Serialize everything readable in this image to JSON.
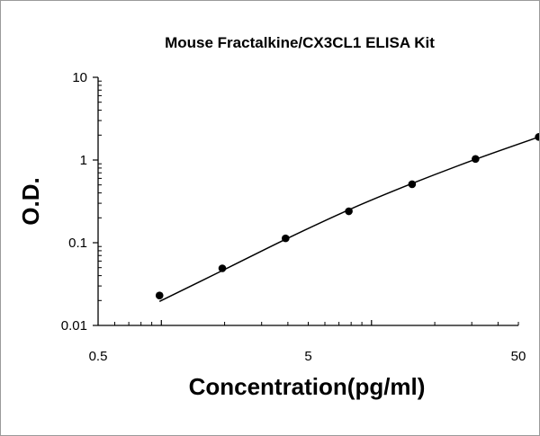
{
  "chart_data": {
    "type": "scatter",
    "title": "Mouse Fractalkine/CX3CL1 ELISA Kit",
    "xlabel": "Concentration(pg/ml)",
    "ylabel": "O.D.",
    "x_scale": "log",
    "y_scale": "log",
    "xlim": [
      0.5,
      50
    ],
    "ylim": [
      0.01,
      10
    ],
    "x_ticks": [
      "0.5",
      "5",
      "50"
    ],
    "y_ticks": [
      "0.01",
      "0.1",
      "1",
      "10"
    ],
    "grid": false,
    "legend": "none",
    "series": [
      {
        "points": [
          {
            "x": 0.98,
            "y": 0.023
          },
          {
            "x": 1.95,
            "y": 0.049
          },
          {
            "x": 3.9,
            "y": 0.113
          },
          {
            "x": 7.8,
            "y": 0.24
          },
          {
            "x": 15.6,
            "y": 0.51
          },
          {
            "x": 31.25,
            "y": 1.03
          },
          {
            "x": 62.5,
            "y": 1.9
          }
        ],
        "fit": [
          {
            "x": 0.98,
            "y": 0.0195
          },
          {
            "x": 1.95,
            "y": 0.046
          },
          {
            "x": 3.9,
            "y": 0.11
          },
          {
            "x": 7.8,
            "y": 0.25
          },
          {
            "x": 15.6,
            "y": 0.52
          },
          {
            "x": 31.25,
            "y": 1.02
          },
          {
            "x": 62.5,
            "y": 1.9
          }
        ]
      }
    ],
    "colors": {
      "marker": "#000000",
      "line": "#000000",
      "axis": "#000000"
    }
  }
}
